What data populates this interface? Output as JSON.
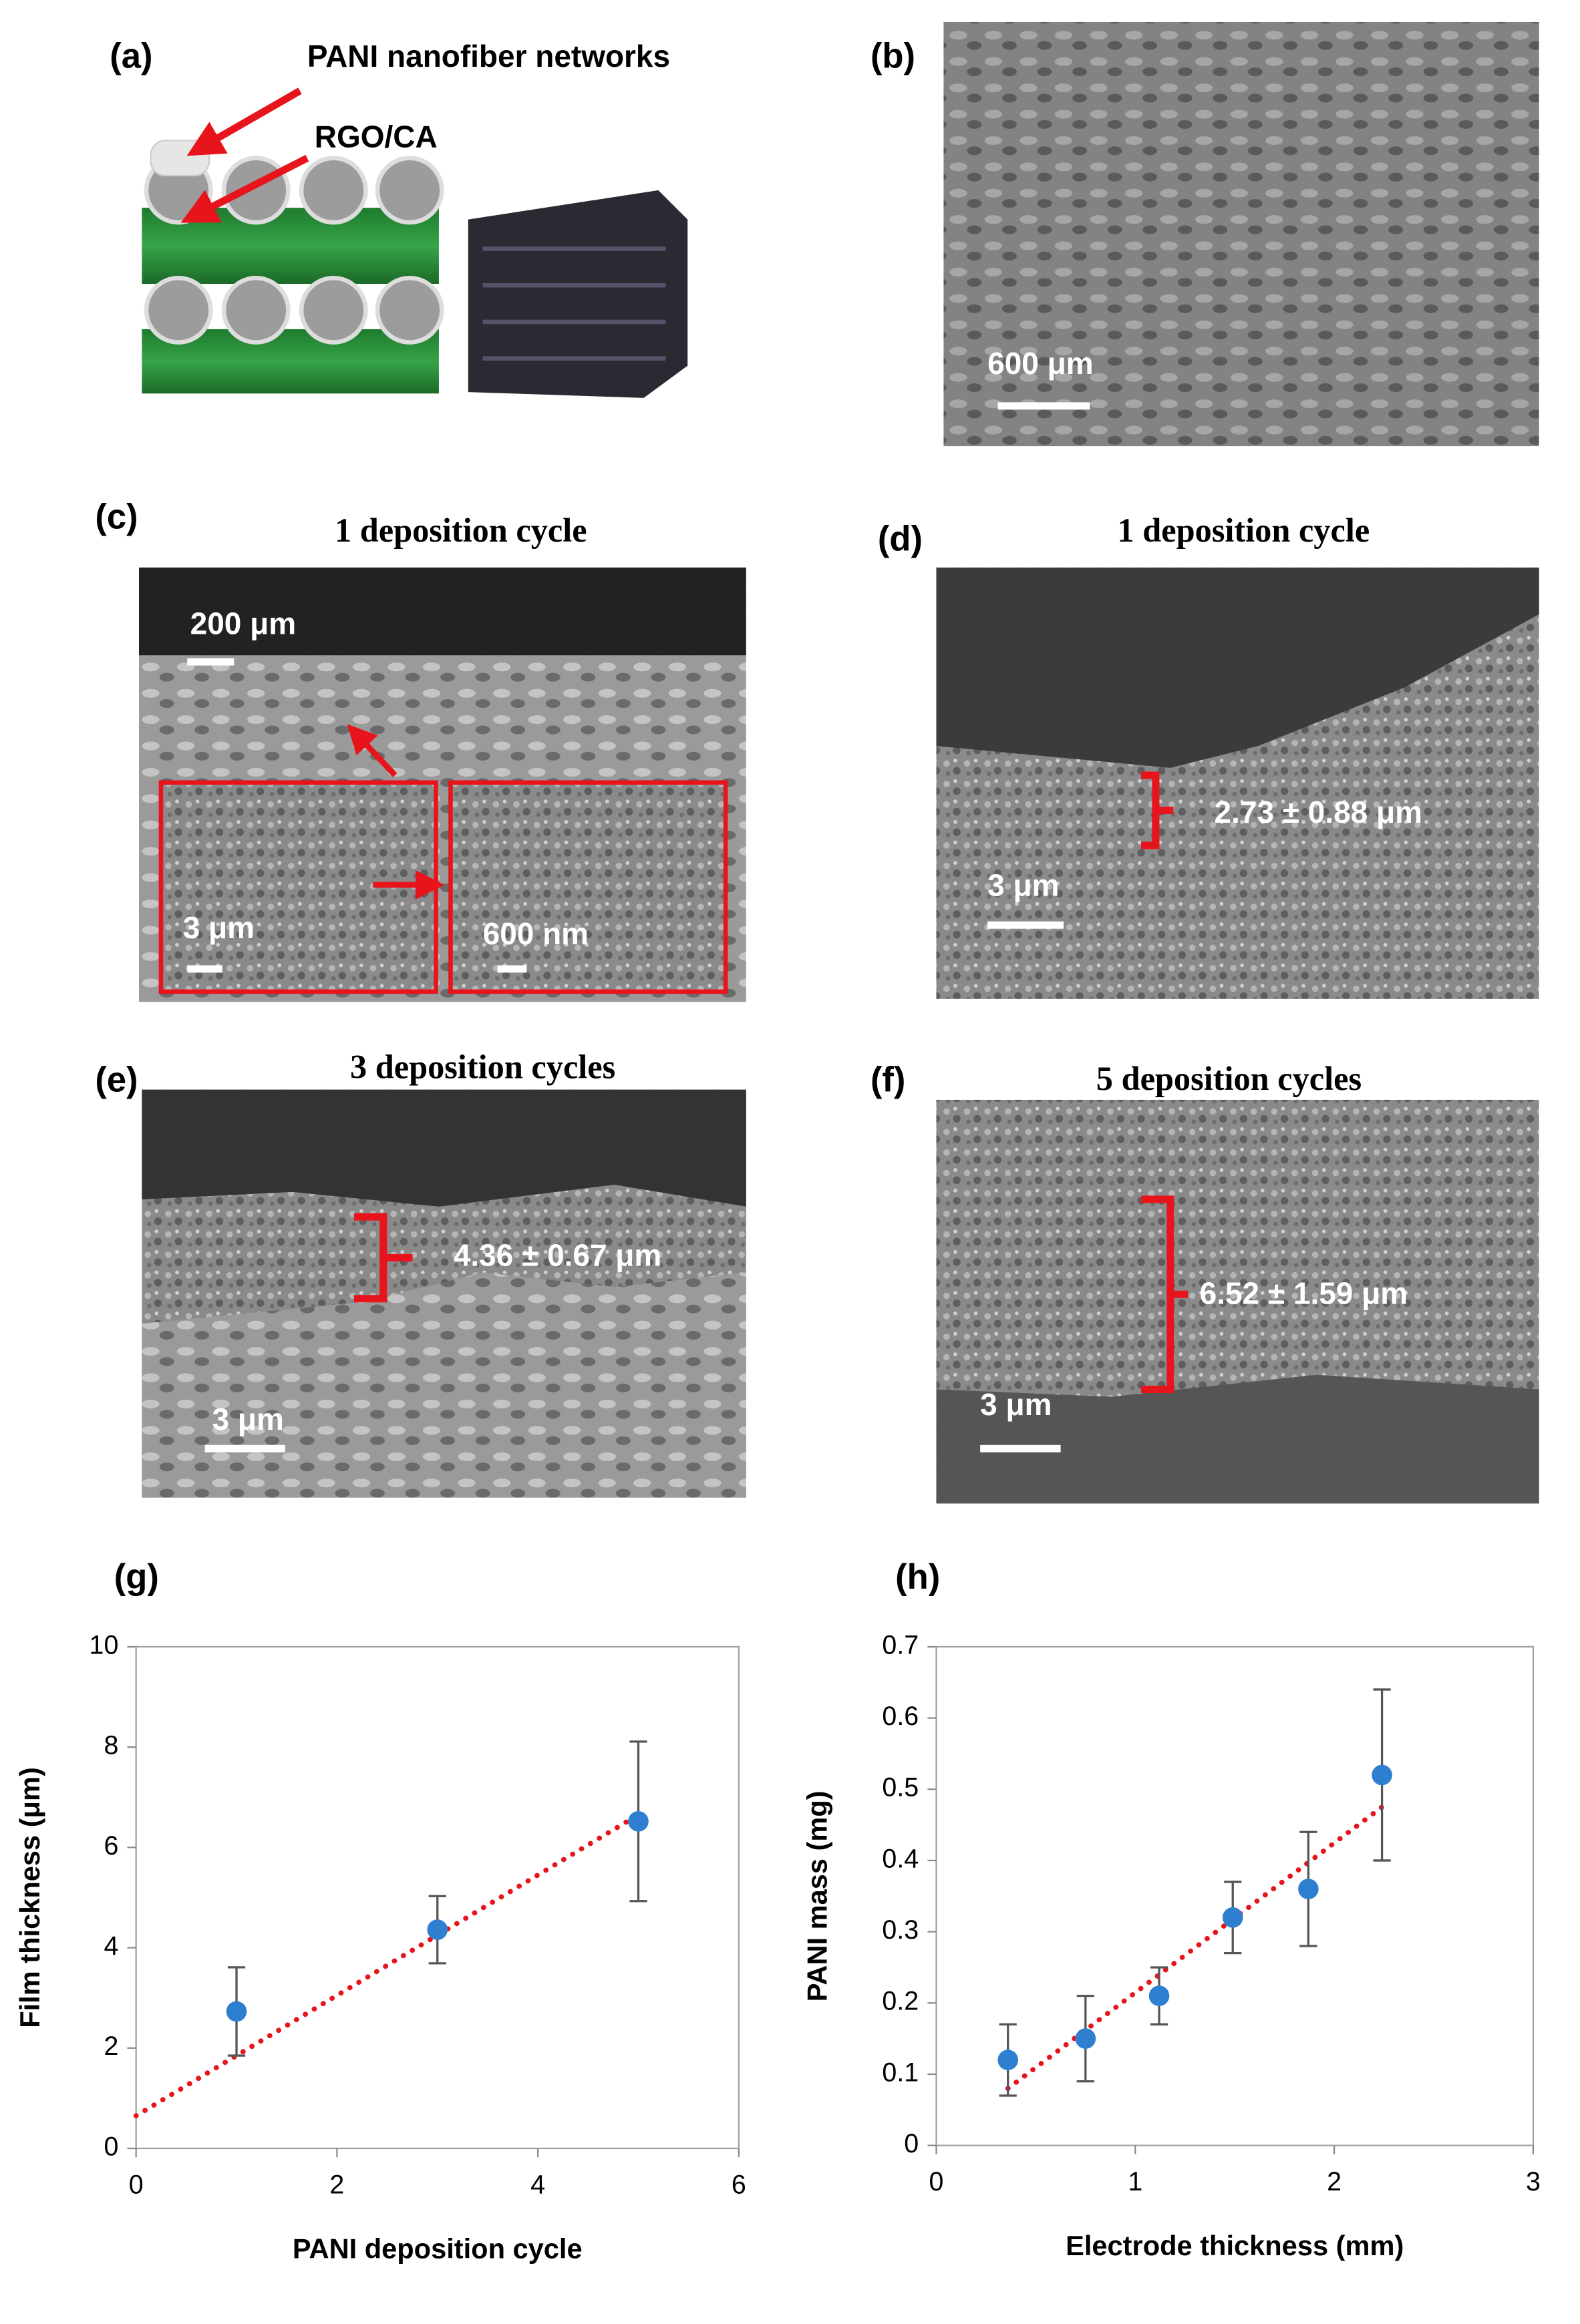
{
  "panels": {
    "a": {
      "label": "(a)",
      "arrow_1": "PANI nanofiber networks",
      "arrow_2": "RGO/CA"
    },
    "b": {
      "label": "(b)",
      "scale": "600 μm"
    },
    "c": {
      "label": "(c)",
      "title": "1 deposition cycle",
      "scale": "200 μm",
      "inset_1_scale": "3 μm",
      "inset_2_scale": "600 nm"
    },
    "d": {
      "label": "(d)",
      "title": "1 deposition cycle",
      "thickness": "2.73 ± 0.88 μm",
      "scale": "3 μm"
    },
    "e": {
      "label": "(e)",
      "title": "3 deposition cycles",
      "thickness": "4.36 ± 0.67 μm",
      "scale": "3 μm"
    },
    "f": {
      "label": "(f)",
      "title": "5 deposition cycles",
      "thickness": "6.52 ± 1.59 μm",
      "scale": "3 μm"
    }
  },
  "chart_data": [
    {
      "type": "scatter",
      "label": "(g)",
      "x_label": "PANI deposition cycle",
      "y_label": "Film thickness (μm)",
      "x": [
        1,
        3,
        5
      ],
      "values": [
        2.73,
        4.36,
        6.52
      ],
      "errors": [
        0.88,
        0.67,
        1.59
      ],
      "color": "#2e7fd0",
      "error_color": "#555555",
      "trendline": {
        "x": [
          0,
          5
        ],
        "y": [
          0.65,
          6.65
        ],
        "color": "#e8141b"
      },
      "xlim": [
        0,
        6
      ],
      "xticks": [
        0,
        2,
        4,
        6
      ],
      "ylim": [
        0,
        10
      ],
      "yticks": [
        0,
        2,
        4,
        6,
        8,
        10
      ]
    },
    {
      "type": "scatter",
      "label": "(h)",
      "x_label": "Electrode thickness (mm)",
      "y_label": "PANI mass (mg)",
      "x": [
        0.36,
        0.75,
        1.12,
        1.49,
        1.87,
        2.24
      ],
      "values": [
        0.12,
        0.15,
        0.21,
        0.32,
        0.36,
        0.52
      ],
      "errors": [
        0.05,
        0.06,
        0.04,
        0.05,
        0.08,
        0.12
      ],
      "color": "#2e7fd0",
      "error_color": "#555555",
      "trendline": {
        "x": [
          0.36,
          2.24
        ],
        "y": [
          0.08,
          0.475
        ],
        "color": "#e8141b"
      },
      "xlim": [
        0,
        3
      ],
      "xticks": [
        0,
        1,
        2,
        3
      ],
      "ylim": [
        0,
        0.7
      ],
      "yticks": [
        0,
        0.1,
        0.2,
        0.3,
        0.4,
        0.5,
        0.6,
        0.7
      ]
    }
  ]
}
